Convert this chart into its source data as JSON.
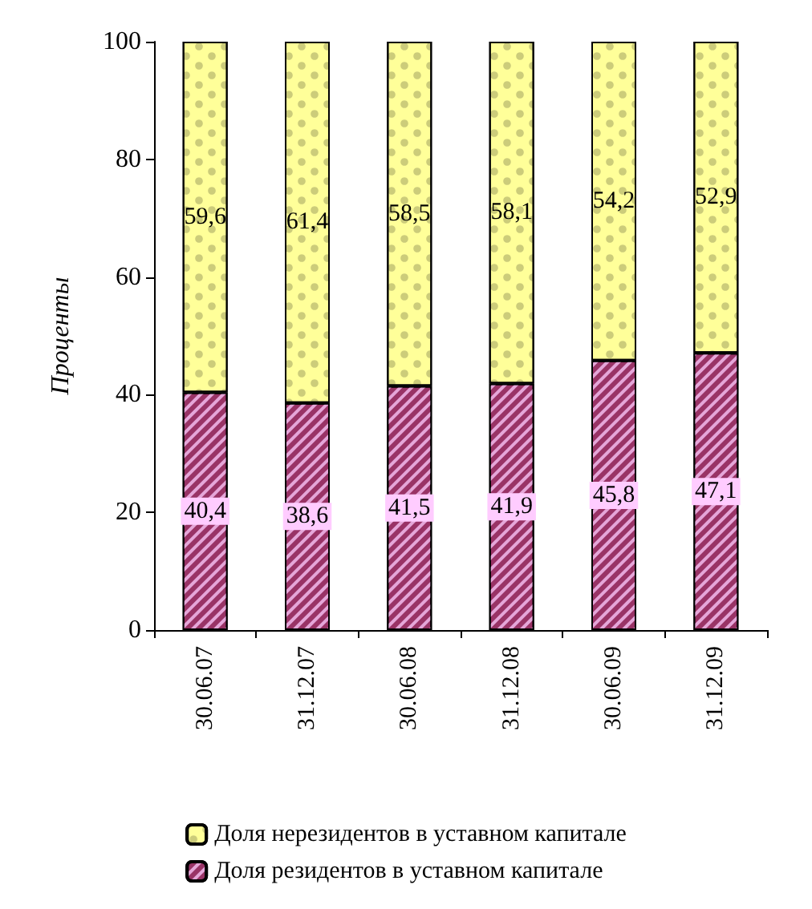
{
  "chart_data": {
    "type": "bar",
    "stacked": true,
    "ylabel": "Проценты",
    "categories": [
      "30.06.07",
      "31.12.07",
      "30.06.08",
      "31.12.08",
      "30.06.09",
      "31.12.09"
    ],
    "series": [
      {
        "name": "Доля резидентов в уставном капитале",
        "color": "#993366",
        "values": [
          40.4,
          38.6,
          41.5,
          41.9,
          45.8,
          47.1
        ],
        "value_labels": [
          "40,4",
          "38,6",
          "41,5",
          "41,9",
          "45,8",
          "47,1"
        ]
      },
      {
        "name": "Доля нерезидентов в уставном капитале",
        "color": "#ffff99",
        "values": [
          59.6,
          61.4,
          58.5,
          58.1,
          54.2,
          52.9
        ],
        "value_labels": [
          "59,6",
          "61,4",
          "58,5",
          "58,1",
          "54,2",
          "52,9"
        ]
      }
    ],
    "ylim": [
      0,
      100
    ],
    "yticks": [
      0,
      20,
      40,
      60,
      80,
      100
    ],
    "grid": false,
    "legend": "bottom"
  }
}
